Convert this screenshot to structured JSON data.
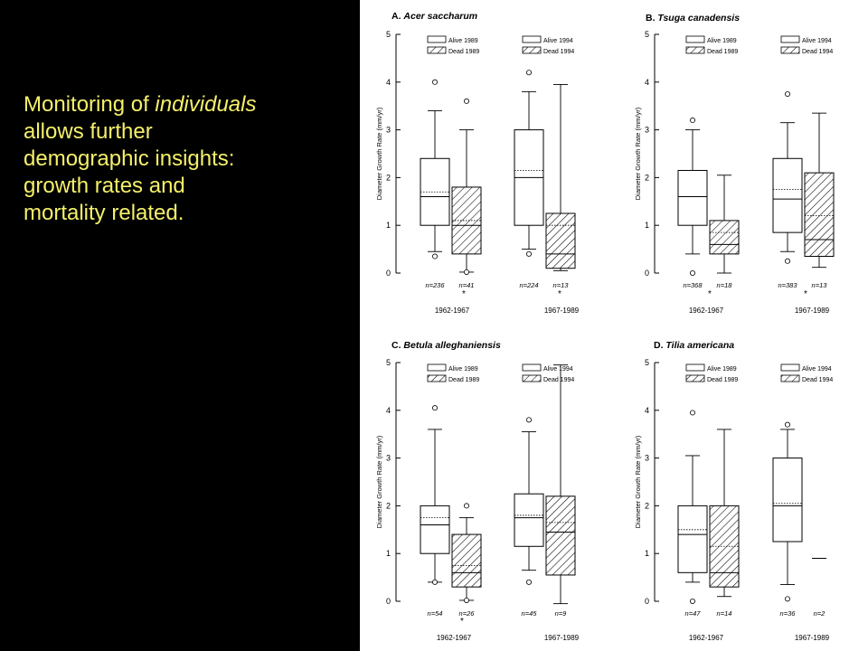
{
  "slide": {
    "line1_a": "Monitoring of ",
    "line1_b": "individuals",
    "line2": "allows further",
    "line3": "demographic insights:",
    "line4": "growth rates and",
    "line5": "mortality related."
  },
  "colors": {
    "background": "#000000",
    "text": "#f5f06a",
    "panel": "#ffffff",
    "ink": "#000000"
  },
  "chart_data": [
    {
      "type": "box",
      "title": "A. Acer saccharum",
      "title_prefix": "A. ",
      "title_species": "Acer saccharum",
      "ylabel": "Diameter Growth Rate (mm/yr)",
      "ylim": [
        0,
        5
      ],
      "yticks": [
        "0",
        "1",
        "2",
        "3",
        "4",
        "5"
      ],
      "groups": [
        "1962-1967",
        "1967-1989"
      ],
      "legend": [
        {
          "label": "Alive 1989",
          "hatched": false
        },
        {
          "label": "Dead 1989",
          "hatched": true
        },
        {
          "label": "Alive 1994",
          "hatched": false
        },
        {
          "label": "Dead 1994",
          "hatched": true
        }
      ],
      "boxes": [
        {
          "group": 0,
          "status": "alive",
          "n": "n=236",
          "q1": 1.0,
          "median": 1.6,
          "mean": 1.7,
          "q3": 2.4,
          "wlo": 0.45,
          "whi": 3.4,
          "outliers": [
            4.0,
            0.35
          ]
        },
        {
          "group": 0,
          "status": "dead",
          "n": "n=41",
          "q1": 0.4,
          "median": 1.0,
          "mean": 1.1,
          "q3": 1.8,
          "wlo": 0.02,
          "whi": 3.0,
          "outliers": [
            3.6,
            0.02
          ]
        },
        {
          "group": 1,
          "status": "alive",
          "n": "n=224",
          "q1": 1.0,
          "median": 2.0,
          "mean": 2.15,
          "q3": 3.0,
          "wlo": 0.5,
          "whi": 3.8,
          "outliers": [
            4.2,
            0.4
          ]
        },
        {
          "group": 1,
          "status": "dead",
          "n": "n=13",
          "q1": 0.1,
          "median": 0.4,
          "mean": 1.0,
          "q3": 1.25,
          "wlo": 0.05,
          "whi": 3.95,
          "outliers": []
        }
      ],
      "significance": [
        "*",
        "*"
      ]
    },
    {
      "type": "box",
      "title": "B. Tsuga canadensis",
      "title_prefix": "B. ",
      "title_species": "Tsuga canadensis",
      "ylabel": "Diameter Growth Rate (mm/yr)",
      "ylim": [
        0,
        5
      ],
      "yticks": [
        "0",
        "1",
        "2",
        "3",
        "4",
        "5"
      ],
      "groups": [
        "1962-1967",
        "1967-1989"
      ],
      "legend": [
        {
          "label": "Alive 1989",
          "hatched": false
        },
        {
          "label": "Dead 1989",
          "hatched": true
        },
        {
          "label": "Alive 1994",
          "hatched": false
        },
        {
          "label": "Dead 1994",
          "hatched": true
        }
      ],
      "boxes": [
        {
          "group": 0,
          "status": "alive",
          "n": "n=368",
          "q1": 1.0,
          "median": 1.6,
          "mean": 1.6,
          "q3": 2.15,
          "wlo": 0.4,
          "whi": 3.0,
          "outliers": [
            3.2,
            0.0
          ]
        },
        {
          "group": 0,
          "status": "dead",
          "n": "n=18",
          "q1": 0.4,
          "median": 0.6,
          "mean": 0.85,
          "q3": 1.1,
          "wlo": 0.0,
          "whi": 2.05,
          "outliers": []
        },
        {
          "group": 1,
          "status": "alive",
          "n": "n=383",
          "q1": 0.85,
          "median": 1.55,
          "mean": 1.75,
          "q3": 2.4,
          "wlo": 0.45,
          "whi": 3.15,
          "outliers": [
            3.75,
            0.25
          ]
        },
        {
          "group": 1,
          "status": "dead",
          "n": "n=13",
          "q1": 0.35,
          "median": 0.7,
          "mean": 1.2,
          "q3": 2.1,
          "wlo": 0.12,
          "whi": 3.35,
          "outliers": []
        }
      ],
      "significance": [
        "*",
        "*"
      ]
    },
    {
      "type": "box",
      "title": "C. Betula alleghaniensis",
      "title_prefix": "C. ",
      "title_species": "Betula alleghaniensis",
      "ylabel": "Diameter Growth Rate (mm/yr)",
      "ylim": [
        0,
        5
      ],
      "yticks": [
        "0",
        "1",
        "2",
        "3",
        "4",
        "5"
      ],
      "groups": [
        "1962-1967",
        "1967-1989"
      ],
      "legend": [
        {
          "label": "Alive 1989",
          "hatched": false
        },
        {
          "label": "Dead 1989",
          "hatched": true
        },
        {
          "label": "Alive 1994",
          "hatched": false
        },
        {
          "label": "Dead 1994",
          "hatched": true
        }
      ],
      "boxes": [
        {
          "group": 0,
          "status": "alive",
          "n": "n=54",
          "q1": 1.0,
          "median": 1.6,
          "mean": 1.75,
          "q3": 2.0,
          "wlo": 0.4,
          "whi": 3.6,
          "outliers": [
            4.05,
            0.4
          ]
        },
        {
          "group": 0,
          "status": "dead",
          "n": "n=26",
          "q1": 0.3,
          "median": 0.6,
          "mean": 0.75,
          "q3": 1.4,
          "wlo": 0.02,
          "whi": 1.75,
          "outliers": [
            2.0,
            0.02
          ]
        },
        {
          "group": 1,
          "status": "alive",
          "n": "n=45",
          "q1": 1.15,
          "median": 1.75,
          "mean": 1.8,
          "q3": 2.25,
          "wlo": 0.65,
          "whi": 3.55,
          "outliers": [
            3.8,
            0.4
          ]
        },
        {
          "group": 1,
          "status": "dead",
          "n": "n=9",
          "q1": 0.55,
          "median": 1.45,
          "mean": 1.65,
          "q3": 2.2,
          "wlo": -0.05,
          "whi": 4.95,
          "outliers": []
        }
      ],
      "significance": [
        "*"
      ]
    },
    {
      "type": "box",
      "title": "D. Tilia americana",
      "title_prefix": "D. ",
      "title_species": "Tilia americana",
      "ylabel": "Diameter Growth Rate (mm/yr)",
      "ylim": [
        0,
        5
      ],
      "yticks": [
        "0",
        "1",
        "2",
        "3",
        "4",
        "5"
      ],
      "groups": [
        "1962-1967",
        "1967-1989"
      ],
      "legend": [
        {
          "label": "Alive 1989",
          "hatched": false
        },
        {
          "label": "Dead 1989",
          "hatched": true
        },
        {
          "label": "Alive 1994",
          "hatched": false
        },
        {
          "label": "Dead 1994",
          "hatched": true
        }
      ],
      "boxes": [
        {
          "group": 0,
          "status": "alive",
          "n": "n=47",
          "q1": 0.6,
          "median": 1.4,
          "mean": 1.5,
          "q3": 2.0,
          "wlo": 0.4,
          "whi": 3.05,
          "outliers": [
            3.95,
            0.0
          ]
        },
        {
          "group": 0,
          "status": "dead",
          "n": "n=14",
          "q1": 0.3,
          "median": 0.6,
          "mean": 1.15,
          "q3": 2.0,
          "wlo": 0.1,
          "whi": 3.6,
          "outliers": []
        },
        {
          "group": 1,
          "status": "alive",
          "n": "n=36",
          "q1": 1.25,
          "median": 2.0,
          "mean": 2.05,
          "q3": 3.0,
          "wlo": 0.35,
          "whi": 3.6,
          "outliers": [
            3.7,
            0.05
          ]
        },
        {
          "group": 1,
          "status": "dead",
          "n": "n=2",
          "q1": null,
          "median": null,
          "mean": null,
          "q3": null,
          "wlo": 0.9,
          "whi": 0.9,
          "outliers": []
        }
      ],
      "significance": []
    }
  ]
}
